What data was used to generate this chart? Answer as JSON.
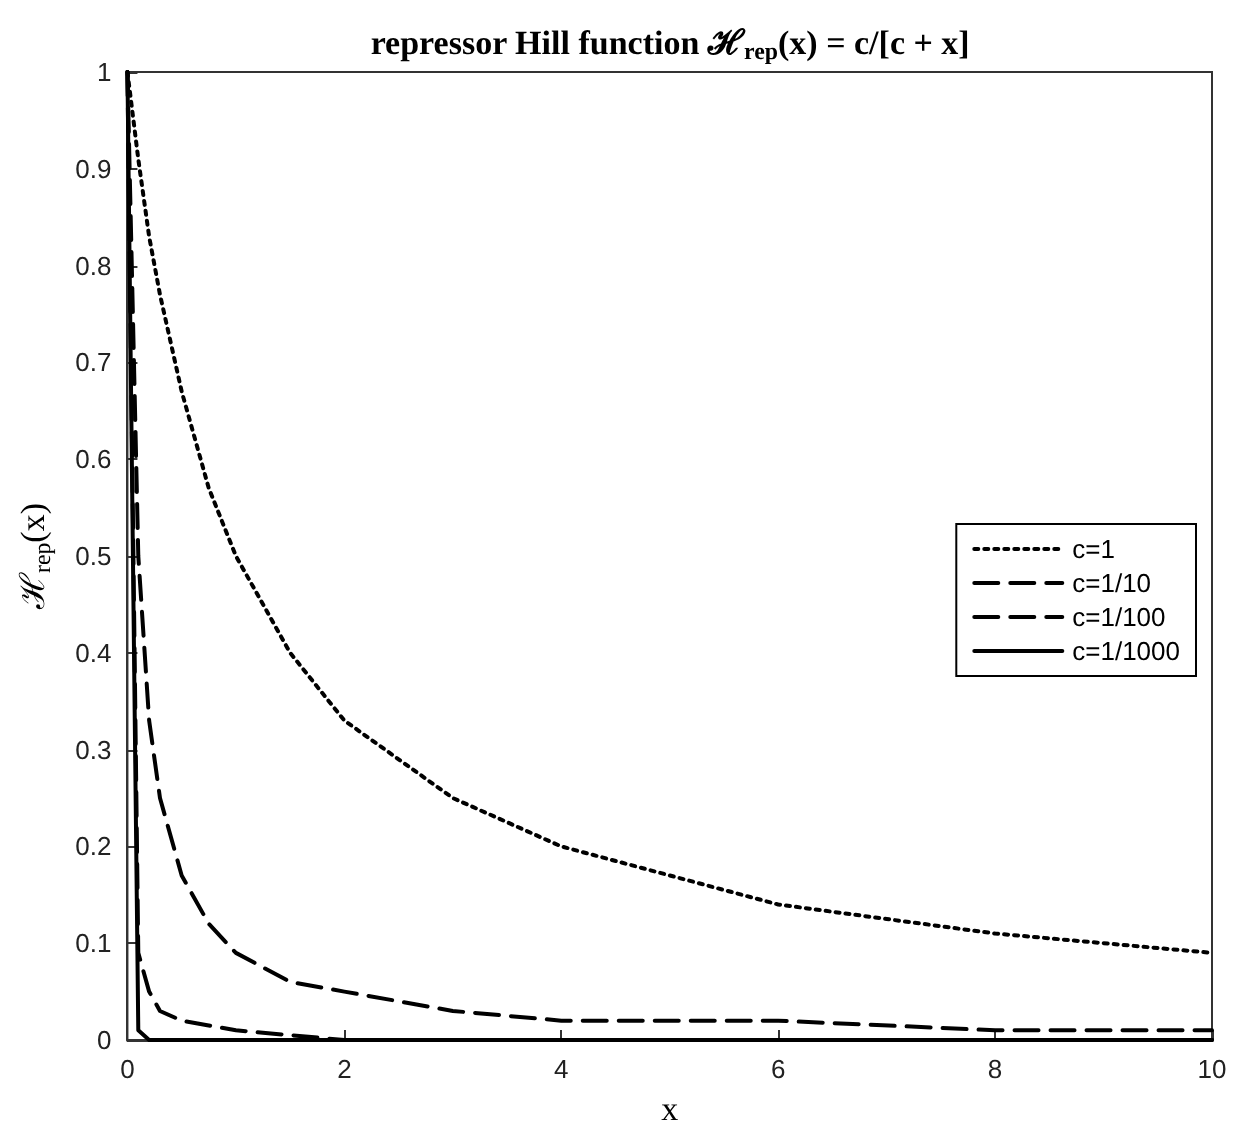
{
  "chart_data": {
    "type": "line",
    "title": "repressor Hill function ℋ$_{rep}$(x) = c/[c + x]",
    "xlabel": "x",
    "ylabel": "ℋ$_{rep}$(x)",
    "xlim": [
      0,
      10
    ],
    "xticks": [
      0,
      2,
      4,
      6,
      8,
      10
    ],
    "ylim": [
      0,
      1
    ],
    "yticks": [
      0,
      0.1,
      0.2,
      0.3,
      0.4,
      0.5,
      0.6,
      0.7,
      0.8,
      0.9,
      1
    ],
    "grid": false,
    "legend": "right",
    "marker": "none",
    "series": [
      {
        "name": "c=1",
        "color": "#000000",
        "line_style": "dotted",
        "x": [
          0,
          0.1,
          0.2,
          0.3,
          0.5,
          0.75,
          1,
          1.5,
          2,
          2.5,
          3,
          4,
          5,
          6,
          7,
          8,
          9,
          10
        ],
        "values": [
          1,
          0.91,
          0.83,
          0.77,
          0.67,
          0.57,
          0.5,
          0.4,
          0.33,
          0.29,
          0.25,
          0.2,
          0.17,
          0.14,
          0.125,
          0.11,
          0.1,
          0.09
        ]
      },
      {
        "name": "c=1/10",
        "color": "#000000",
        "line_style": "dashed",
        "x": [
          0,
          0.1,
          0.2,
          0.3,
          0.5,
          0.75,
          1,
          1.5,
          2,
          3,
          4,
          5,
          6,
          8,
          10
        ],
        "values": [
          1,
          0.5,
          0.33,
          0.25,
          0.17,
          0.12,
          0.09,
          0.06,
          0.05,
          0.03,
          0.02,
          0.02,
          0.02,
          0.01,
          0.01
        ]
      },
      {
        "name": "c=1/100",
        "color": "#000000",
        "line_style": "dashed",
        "x": [
          0,
          0.1,
          0.2,
          0.3,
          0.5,
          1,
          2,
          4,
          6,
          8,
          10
        ],
        "values": [
          1,
          0.09,
          0.05,
          0.03,
          0.02,
          0.01,
          0,
          0,
          0,
          0,
          0
        ]
      },
      {
        "name": "c=1/1000",
        "color": "#000000",
        "line_style": "solid",
        "x": [
          0,
          0.1,
          0.2,
          0.5,
          1,
          10
        ],
        "values": [
          1,
          0.01,
          0,
          0,
          0,
          0
        ]
      }
    ]
  }
}
